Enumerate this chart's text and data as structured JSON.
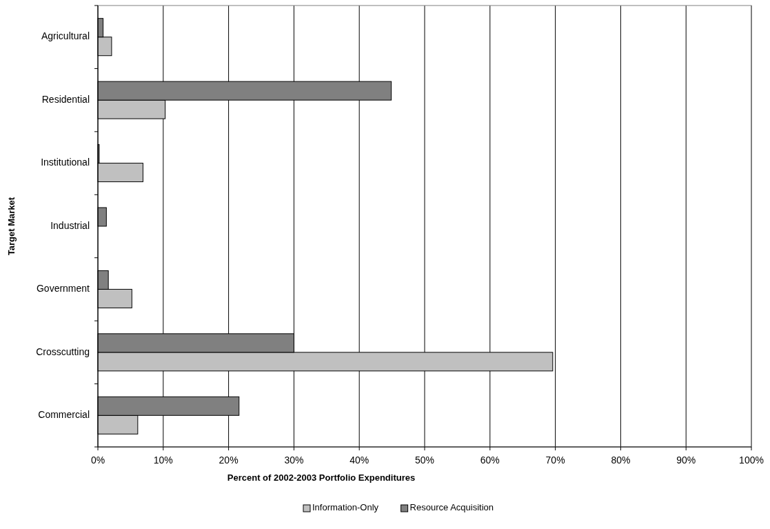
{
  "chart_data": {
    "type": "bar",
    "orientation": "horizontal",
    "xlabel": "Percent of 2002-2003 Portfolio Expenditures",
    "ylabel": "Target Market",
    "categories": [
      "Agricultural",
      "Residential",
      "Institutional",
      "Industrial",
      "Government",
      "Crosscutting",
      "Commercial"
    ],
    "series": [
      {
        "name": "Information-Only",
        "color": "#c0c0c0",
        "values": [
          2.1,
          10.3,
          6.9,
          0,
          5.2,
          69.6,
          6.1
        ]
      },
      {
        "name": "Resource Acquisition",
        "color": "#808080",
        "values": [
          0.8,
          44.9,
          0.2,
          1.3,
          1.6,
          30.0,
          21.6
        ]
      }
    ],
    "xlim": [
      0,
      100
    ],
    "xticks": [
      {
        "value": 0,
        "label": "0%"
      },
      {
        "value": 10,
        "label": "10%"
      },
      {
        "value": 20,
        "label": "20%"
      },
      {
        "value": 30,
        "label": "30%"
      },
      {
        "value": 40,
        "label": "40%"
      },
      {
        "value": 50,
        "label": "50%"
      },
      {
        "value": 60,
        "label": "60%"
      },
      {
        "value": 70,
        "label": "70%"
      },
      {
        "value": 80,
        "label": "80%"
      },
      {
        "value": 90,
        "label": "90%"
      },
      {
        "value": 100,
        "label": "100%"
      }
    ],
    "grid": "x",
    "legend": "bottom"
  }
}
